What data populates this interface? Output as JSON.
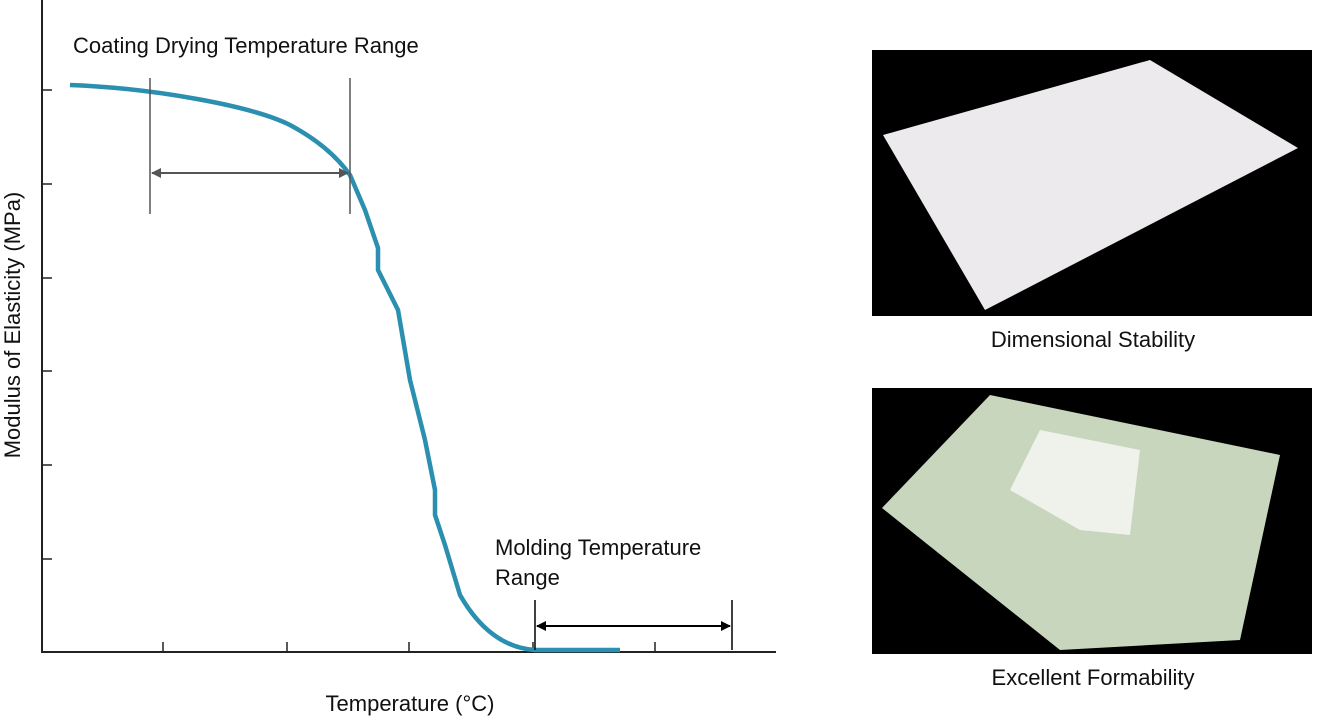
{
  "diagram": {
    "y_axis_label": "Modulus of Elasticity (MPa)",
    "x_axis_label": "Temperature (°C)",
    "annotations": {
      "coating": "Coating Drying Temperature Range",
      "molding": [
        "Molding Temperature",
        "Range"
      ]
    }
  },
  "panels": [
    {
      "caption": "Dimensional Stability"
    },
    {
      "caption": "Excellent Formability"
    }
  ]
}
